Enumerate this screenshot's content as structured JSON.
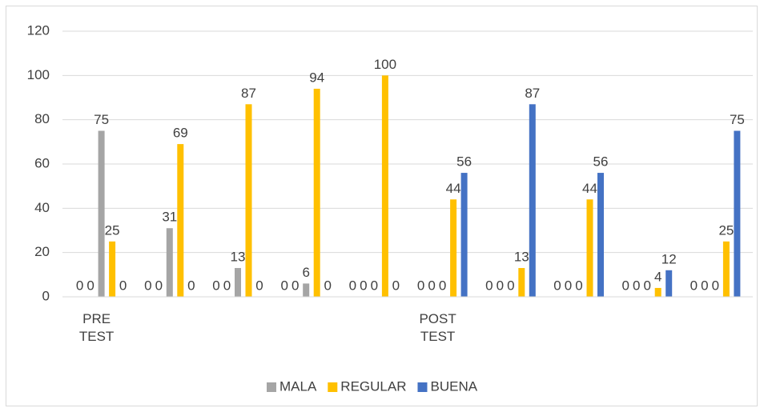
{
  "chart_data": {
    "type": "bar",
    "categories": [
      "PRE TEST",
      null,
      null,
      null,
      null,
      "POST TEST",
      null,
      null,
      null,
      null
    ],
    "series": [
      {
        "color": "#a5a5a5",
        "values": [
          0,
          0,
          0,
          0,
          0,
          0,
          0,
          0,
          0,
          0
        ]
      },
      {
        "color": "#ffc000",
        "values": [
          0,
          0,
          0,
          0,
          0,
          0,
          0,
          0,
          0,
          0
        ]
      },
      {
        "name": "MALA",
        "color": "#a5a5a5",
        "values": [
          75,
          31,
          13,
          6,
          0,
          0,
          0,
          0,
          0,
          0
        ]
      },
      {
        "name": "REGULAR",
        "color": "#ffc000",
        "values": [
          25,
          69,
          87,
          94,
          100,
          44,
          13,
          44,
          4,
          25
        ]
      },
      {
        "name": "BUENA",
        "color": "#4472c4",
        "values": [
          0,
          0,
          0,
          0,
          0,
          56,
          87,
          56,
          12,
          75
        ]
      }
    ],
    "ylim": [
      0,
      120
    ],
    "yticks": [
      0,
      20,
      40,
      60,
      80,
      100,
      120
    ],
    "grid": true,
    "legend": "bottom"
  }
}
